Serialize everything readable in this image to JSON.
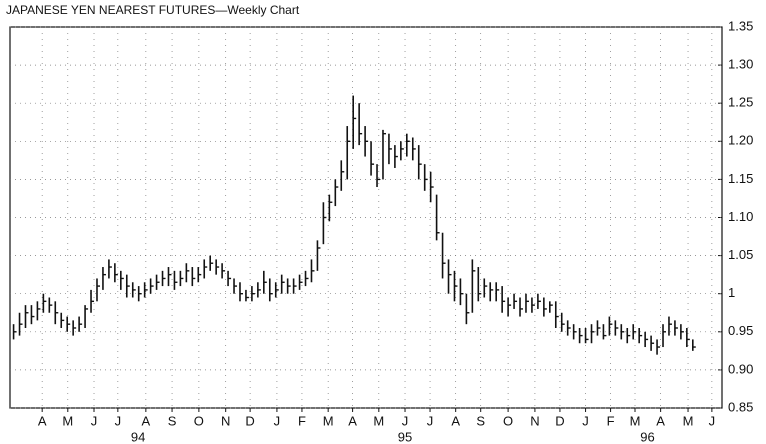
{
  "chart_data": {
    "type": "hlc",
    "title": "JAPANESE YEN NEAREST FUTURES—Weekly Chart",
    "color": "#111111",
    "grid": true,
    "xlim": [
      -0.6,
      118.9
    ],
    "ylim": [
      0.85,
      1.35
    ],
    "yticks": [
      0.85,
      {
        "value": 0.9,
        "label": "0.90"
      },
      0.95,
      1,
      1.05,
      {
        "value": 1.1,
        "label": "1.10"
      },
      1.15,
      {
        "value": 1.2,
        "label": "1.20"
      },
      1.25,
      {
        "value": 1.3,
        "label": "1.30"
      },
      1.35
    ],
    "xticks": [
      {
        "value": 4.8,
        "label": "A"
      },
      {
        "value": 9.1,
        "label": "M"
      },
      {
        "value": 13.5,
        "label": "J"
      },
      {
        "value": 17.5,
        "label": "J"
      },
      {
        "value": 22.2,
        "label": "A"
      },
      {
        "value": 26.6,
        "label": "S"
      },
      {
        "value": 31.1,
        "label": "O"
      },
      {
        "value": 35.6,
        "label": "N"
      },
      {
        "value": 39.7,
        "label": "D"
      },
      {
        "value": 44.2,
        "label": "J"
      },
      {
        "value": 48.4,
        "label": "F"
      },
      {
        "value": 52.8,
        "label": "M"
      },
      {
        "value": 56.9,
        "label": "A"
      },
      {
        "value": 61.3,
        "label": "M"
      },
      {
        "value": 65.7,
        "label": "J"
      },
      {
        "value": 69.9,
        "label": "J"
      },
      {
        "value": 74.2,
        "label": "A"
      },
      {
        "value": 78.4,
        "label": "S"
      },
      {
        "value": 83,
        "label": "O"
      },
      {
        "value": 87.5,
        "label": "N"
      },
      {
        "value": 91.7,
        "label": "D"
      },
      {
        "value": 96,
        "label": "J"
      },
      {
        "value": 100.2,
        "label": "F"
      },
      {
        "value": 104.3,
        "label": "M"
      },
      {
        "value": 108.6,
        "label": "A"
      },
      {
        "value": 113.2,
        "label": "M"
      },
      {
        "value": 117.2,
        "label": "J"
      }
    ],
    "year_labels": [
      {
        "value": 20.9,
        "label": "94"
      },
      {
        "value": 65.7,
        "label": "95"
      },
      {
        "value": 106.4,
        "label": "96"
      }
    ],
    "x": [
      0,
      1,
      2,
      3,
      4,
      5,
      6,
      7,
      8,
      9,
      10,
      11,
      12,
      13,
      14,
      15,
      16,
      17,
      18,
      19,
      20,
      21,
      22,
      23,
      24,
      25,
      26,
      27,
      28,
      29,
      30,
      31,
      32,
      33,
      34,
      35,
      36,
      37,
      38,
      39,
      40,
      41,
      42,
      43,
      44,
      45,
      46,
      47,
      48,
      49,
      50,
      51,
      52,
      53,
      54,
      55,
      56,
      57,
      58,
      59,
      60,
      61,
      62,
      63,
      64,
      65,
      66,
      67,
      68,
      69,
      70,
      71,
      72,
      73,
      74,
      75,
      76,
      77,
      78,
      79,
      80,
      81,
      82,
      83,
      84,
      85,
      86,
      87,
      88,
      89,
      90,
      91,
      92,
      93,
      94,
      95,
      96,
      97,
      98,
      99,
      100,
      101,
      102,
      103,
      104,
      105,
      106,
      107,
      108,
      109,
      110,
      111,
      112,
      113,
      114
    ],
    "high": [
      0.96,
      0.975,
      0.985,
      0.985,
      0.99,
      1.0,
      0.995,
      0.99,
      0.975,
      0.97,
      0.965,
      0.97,
      0.985,
      1.005,
      1.02,
      1.035,
      1.045,
      1.04,
      1.03,
      1.025,
      1.015,
      1.01,
      1.015,
      1.02,
      1.025,
      1.03,
      1.035,
      1.03,
      1.03,
      1.04,
      1.035,
      1.035,
      1.045,
      1.05,
      1.045,
      1.04,
      1.03,
      1.02,
      1.015,
      1.005,
      1.01,
      1.015,
      1.03,
      1.02,
      1.015,
      1.025,
      1.02,
      1.02,
      1.025,
      1.03,
      1.045,
      1.07,
      1.12,
      1.13,
      1.15,
      1.175,
      1.22,
      1.26,
      1.25,
      1.22,
      1.2,
      1.17,
      1.215,
      1.21,
      1.195,
      1.2,
      1.21,
      1.205,
      1.195,
      1.17,
      1.16,
      1.13,
      1.08,
      1.045,
      1.03,
      1.02,
      1.0,
      1.045,
      1.035,
      1.02,
      1.015,
      1.015,
      1.01,
      0.995,
      1.0,
      0.995,
      1.0,
      0.995,
      1.0,
      0.995,
      0.99,
      0.99,
      0.975,
      0.965,
      0.96,
      0.955,
      0.955,
      0.96,
      0.965,
      0.96,
      0.97,
      0.965,
      0.96,
      0.955,
      0.96,
      0.955,
      0.95,
      0.945,
      0.94,
      0.96,
      0.97,
      0.965,
      0.96,
      0.955,
      0.94
    ],
    "low": [
      0.94,
      0.945,
      0.955,
      0.96,
      0.965,
      0.975,
      0.975,
      0.96,
      0.955,
      0.95,
      0.945,
      0.95,
      0.955,
      0.975,
      0.99,
      1.005,
      1.02,
      1.015,
      1.005,
      0.995,
      0.995,
      0.99,
      0.995,
      1.0,
      1.005,
      1.01,
      1.01,
      1.005,
      1.01,
      1.015,
      1.01,
      1.015,
      1.02,
      1.03,
      1.025,
      1.02,
      1.01,
      1.0,
      0.99,
      0.99,
      0.99,
      0.995,
      1.0,
      0.99,
      0.995,
      1.0,
      1.0,
      1.0,
      1.005,
      1.01,
      1.015,
      1.03,
      1.065,
      1.095,
      1.115,
      1.135,
      1.15,
      1.19,
      1.195,
      1.18,
      1.155,
      1.14,
      1.15,
      1.17,
      1.165,
      1.175,
      1.18,
      1.175,
      1.15,
      1.135,
      1.12,
      1.07,
      1.02,
      1.0,
      0.99,
      0.985,
      0.96,
      0.975,
      0.99,
      0.995,
      0.99,
      0.99,
      0.975,
      0.97,
      0.98,
      0.97,
      0.975,
      0.975,
      0.98,
      0.97,
      0.975,
      0.955,
      0.95,
      0.945,
      0.94,
      0.935,
      0.935,
      0.935,
      0.945,
      0.94,
      0.945,
      0.945,
      0.94,
      0.935,
      0.94,
      0.935,
      0.93,
      0.925,
      0.92,
      0.93,
      0.945,
      0.945,
      0.94,
      0.93,
      0.925
    ],
    "close": [
      0.95,
      0.96,
      0.975,
      0.97,
      0.98,
      0.99,
      0.985,
      0.975,
      0.965,
      0.96,
      0.955,
      0.96,
      0.98,
      0.99,
      1.01,
      1.025,
      1.035,
      1.025,
      1.02,
      1.01,
      1.005,
      1.0,
      1.005,
      1.01,
      1.015,
      1.02,
      1.025,
      1.015,
      1.02,
      1.03,
      1.02,
      1.025,
      1.035,
      1.04,
      1.035,
      1.03,
      1.02,
      1.01,
      1.0,
      0.995,
      1.0,
      1.005,
      1.015,
      1.0,
      1.005,
      1.015,
      1.01,
      1.01,
      1.015,
      1.02,
      1.03,
      1.06,
      1.1,
      1.12,
      1.14,
      1.16,
      1.2,
      1.23,
      1.21,
      1.2,
      1.17,
      1.15,
      1.21,
      1.19,
      1.18,
      1.19,
      1.2,
      1.19,
      1.17,
      1.15,
      1.14,
      1.08,
      1.04,
      1.025,
      1.01,
      1.0,
      0.975,
      1.03,
      1.0,
      1.01,
      1.005,
      1.005,
      0.99,
      0.985,
      0.99,
      0.98,
      0.99,
      0.985,
      0.99,
      0.98,
      0.985,
      0.97,
      0.96,
      0.955,
      0.95,
      0.945,
      0.94,
      0.95,
      0.955,
      0.945,
      0.96,
      0.955,
      0.95,
      0.945,
      0.95,
      0.945,
      0.94,
      0.935,
      0.93,
      0.95,
      0.96,
      0.955,
      0.95,
      0.94,
      0.93
    ]
  }
}
